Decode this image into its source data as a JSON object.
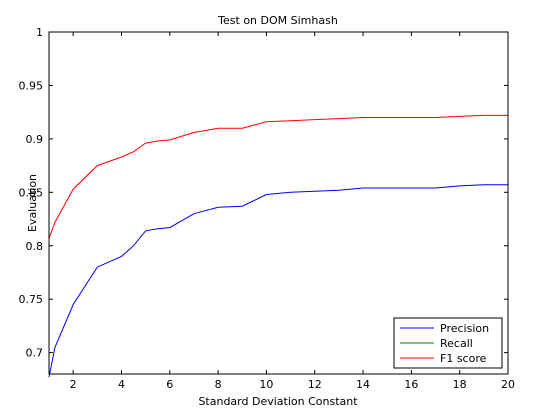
{
  "chart_data": {
    "type": "line",
    "title": "Test on DOM Simhash",
    "xlabel": "Standard Deviation Constant",
    "ylabel": "Evaluation",
    "xlim": [
      1,
      20
    ],
    "ylim": [
      0.68,
      1.0
    ],
    "xticks": [
      2,
      4,
      6,
      8,
      10,
      12,
      14,
      16,
      18,
      20
    ],
    "xtick_labels": [
      "2",
      "4",
      "6",
      "8",
      "10",
      "12",
      "14",
      "16",
      "18",
      "20"
    ],
    "yticks": [
      0.7,
      0.75,
      0.8,
      0.85,
      0.9,
      0.95,
      1.0
    ],
    "ytick_labels": [
      "0.7",
      "0.75",
      "0.8",
      "0.85",
      "0.9",
      "0.95",
      "1"
    ],
    "grid": false,
    "legend_position": "bottom-right",
    "x": [
      1,
      1.25,
      2,
      3,
      4,
      4.5,
      5,
      5.5,
      6,
      7,
      8,
      9,
      10,
      11,
      12,
      13,
      14,
      15,
      16,
      17,
      18,
      19,
      20
    ],
    "series": [
      {
        "name": "Precision",
        "color": "#0000ff",
        "values": [
          0.677,
          0.705,
          0.745,
          0.78,
          0.79,
          0.8,
          0.814,
          0.816,
          0.817,
          0.83,
          0.836,
          0.837,
          0.848,
          0.85,
          0.851,
          0.852,
          0.854,
          0.854,
          0.854,
          0.854,
          0.856,
          0.857,
          0.857
        ]
      },
      {
        "name": "Recall",
        "color": "#007f00",
        "values": [
          1,
          1,
          1,
          1,
          1,
          1,
          1,
          1,
          1,
          1,
          1,
          1,
          1,
          1,
          1,
          1,
          1,
          1,
          1,
          1,
          1,
          1,
          1
        ]
      },
      {
        "name": "F1 score",
        "color": "#ff0000",
        "values": [
          0.807,
          0.822,
          0.853,
          0.875,
          0.883,
          0.888,
          0.896,
          0.898,
          0.899,
          0.906,
          0.91,
          0.91,
          0.916,
          0.917,
          0.918,
          0.919,
          0.92,
          0.92,
          0.92,
          0.92,
          0.921,
          0.922,
          0.922
        ]
      }
    ]
  }
}
